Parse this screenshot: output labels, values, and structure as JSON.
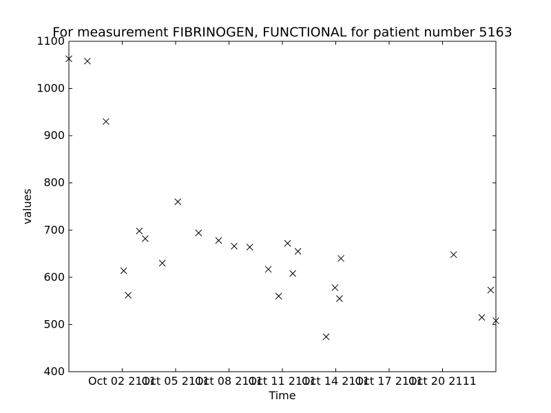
{
  "chart_data": {
    "type": "scatter",
    "title": "For measurement FIBRINOGEN, FUNCTIONAL for patient number 5163",
    "xlabel": "Time",
    "ylabel": "values",
    "marker": "x",
    "marker_color": "#000000",
    "grid": false,
    "legend": "none",
    "ylim": [
      400,
      1100
    ],
    "yticks": [
      400,
      500,
      600,
      700,
      800,
      900,
      1000,
      1100
    ],
    "xlim": [
      "2111-09-29T00:00",
      "2111-10-23T00:00"
    ],
    "xticks": [
      {
        "value": "2111-10-02",
        "label": "Oct 02 2111"
      },
      {
        "value": "2111-10-05",
        "label": "Oct 05 2111"
      },
      {
        "value": "2111-10-08",
        "label": "Oct 08 2111"
      },
      {
        "value": "2111-10-11",
        "label": "Oct 11 2111"
      },
      {
        "value": "2111-10-14",
        "label": "Oct 14 2111"
      },
      {
        "value": "2111-10-17",
        "label": "Oct 17 2111"
      },
      {
        "value": "2111-10-20",
        "label": "Oct 20 2111"
      }
    ],
    "points": [
      {
        "x": "2111-09-29T00:00",
        "y": 1063
      },
      {
        "x": "2111-09-30T01:00",
        "y": 1058
      },
      {
        "x": "2111-10-01T02:00",
        "y": 930
      },
      {
        "x": "2111-10-02T02:00",
        "y": 614
      },
      {
        "x": "2111-10-02T08:00",
        "y": 562
      },
      {
        "x": "2111-10-02T23:00",
        "y": 698
      },
      {
        "x": "2111-10-03T07:00",
        "y": 682
      },
      {
        "x": "2111-10-04T06:00",
        "y": 630
      },
      {
        "x": "2111-10-05T03:00",
        "y": 760
      },
      {
        "x": "2111-10-06T07:00",
        "y": 694
      },
      {
        "x": "2111-10-07T10:00",
        "y": 678
      },
      {
        "x": "2111-10-08T07:00",
        "y": 666
      },
      {
        "x": "2111-10-09T04:00",
        "y": 664
      },
      {
        "x": "2111-10-10T05:00",
        "y": 617
      },
      {
        "x": "2111-10-10T19:00",
        "y": 560
      },
      {
        "x": "2111-10-11T07:00",
        "y": 672
      },
      {
        "x": "2111-10-11T14:00",
        "y": 608
      },
      {
        "x": "2111-10-11T21:00",
        "y": 655
      },
      {
        "x": "2111-10-13T11:00",
        "y": 474
      },
      {
        "x": "2111-10-13T23:00",
        "y": 578
      },
      {
        "x": "2111-10-14T05:00",
        "y": 555
      },
      {
        "x": "2111-10-14T07:00",
        "y": 640
      },
      {
        "x": "2111-10-20T15:00",
        "y": 648
      },
      {
        "x": "2111-10-22T05:00",
        "y": 515
      },
      {
        "x": "2111-10-22T17:00",
        "y": 573
      },
      {
        "x": "2111-10-23T00:00",
        "y": 508
      }
    ]
  }
}
